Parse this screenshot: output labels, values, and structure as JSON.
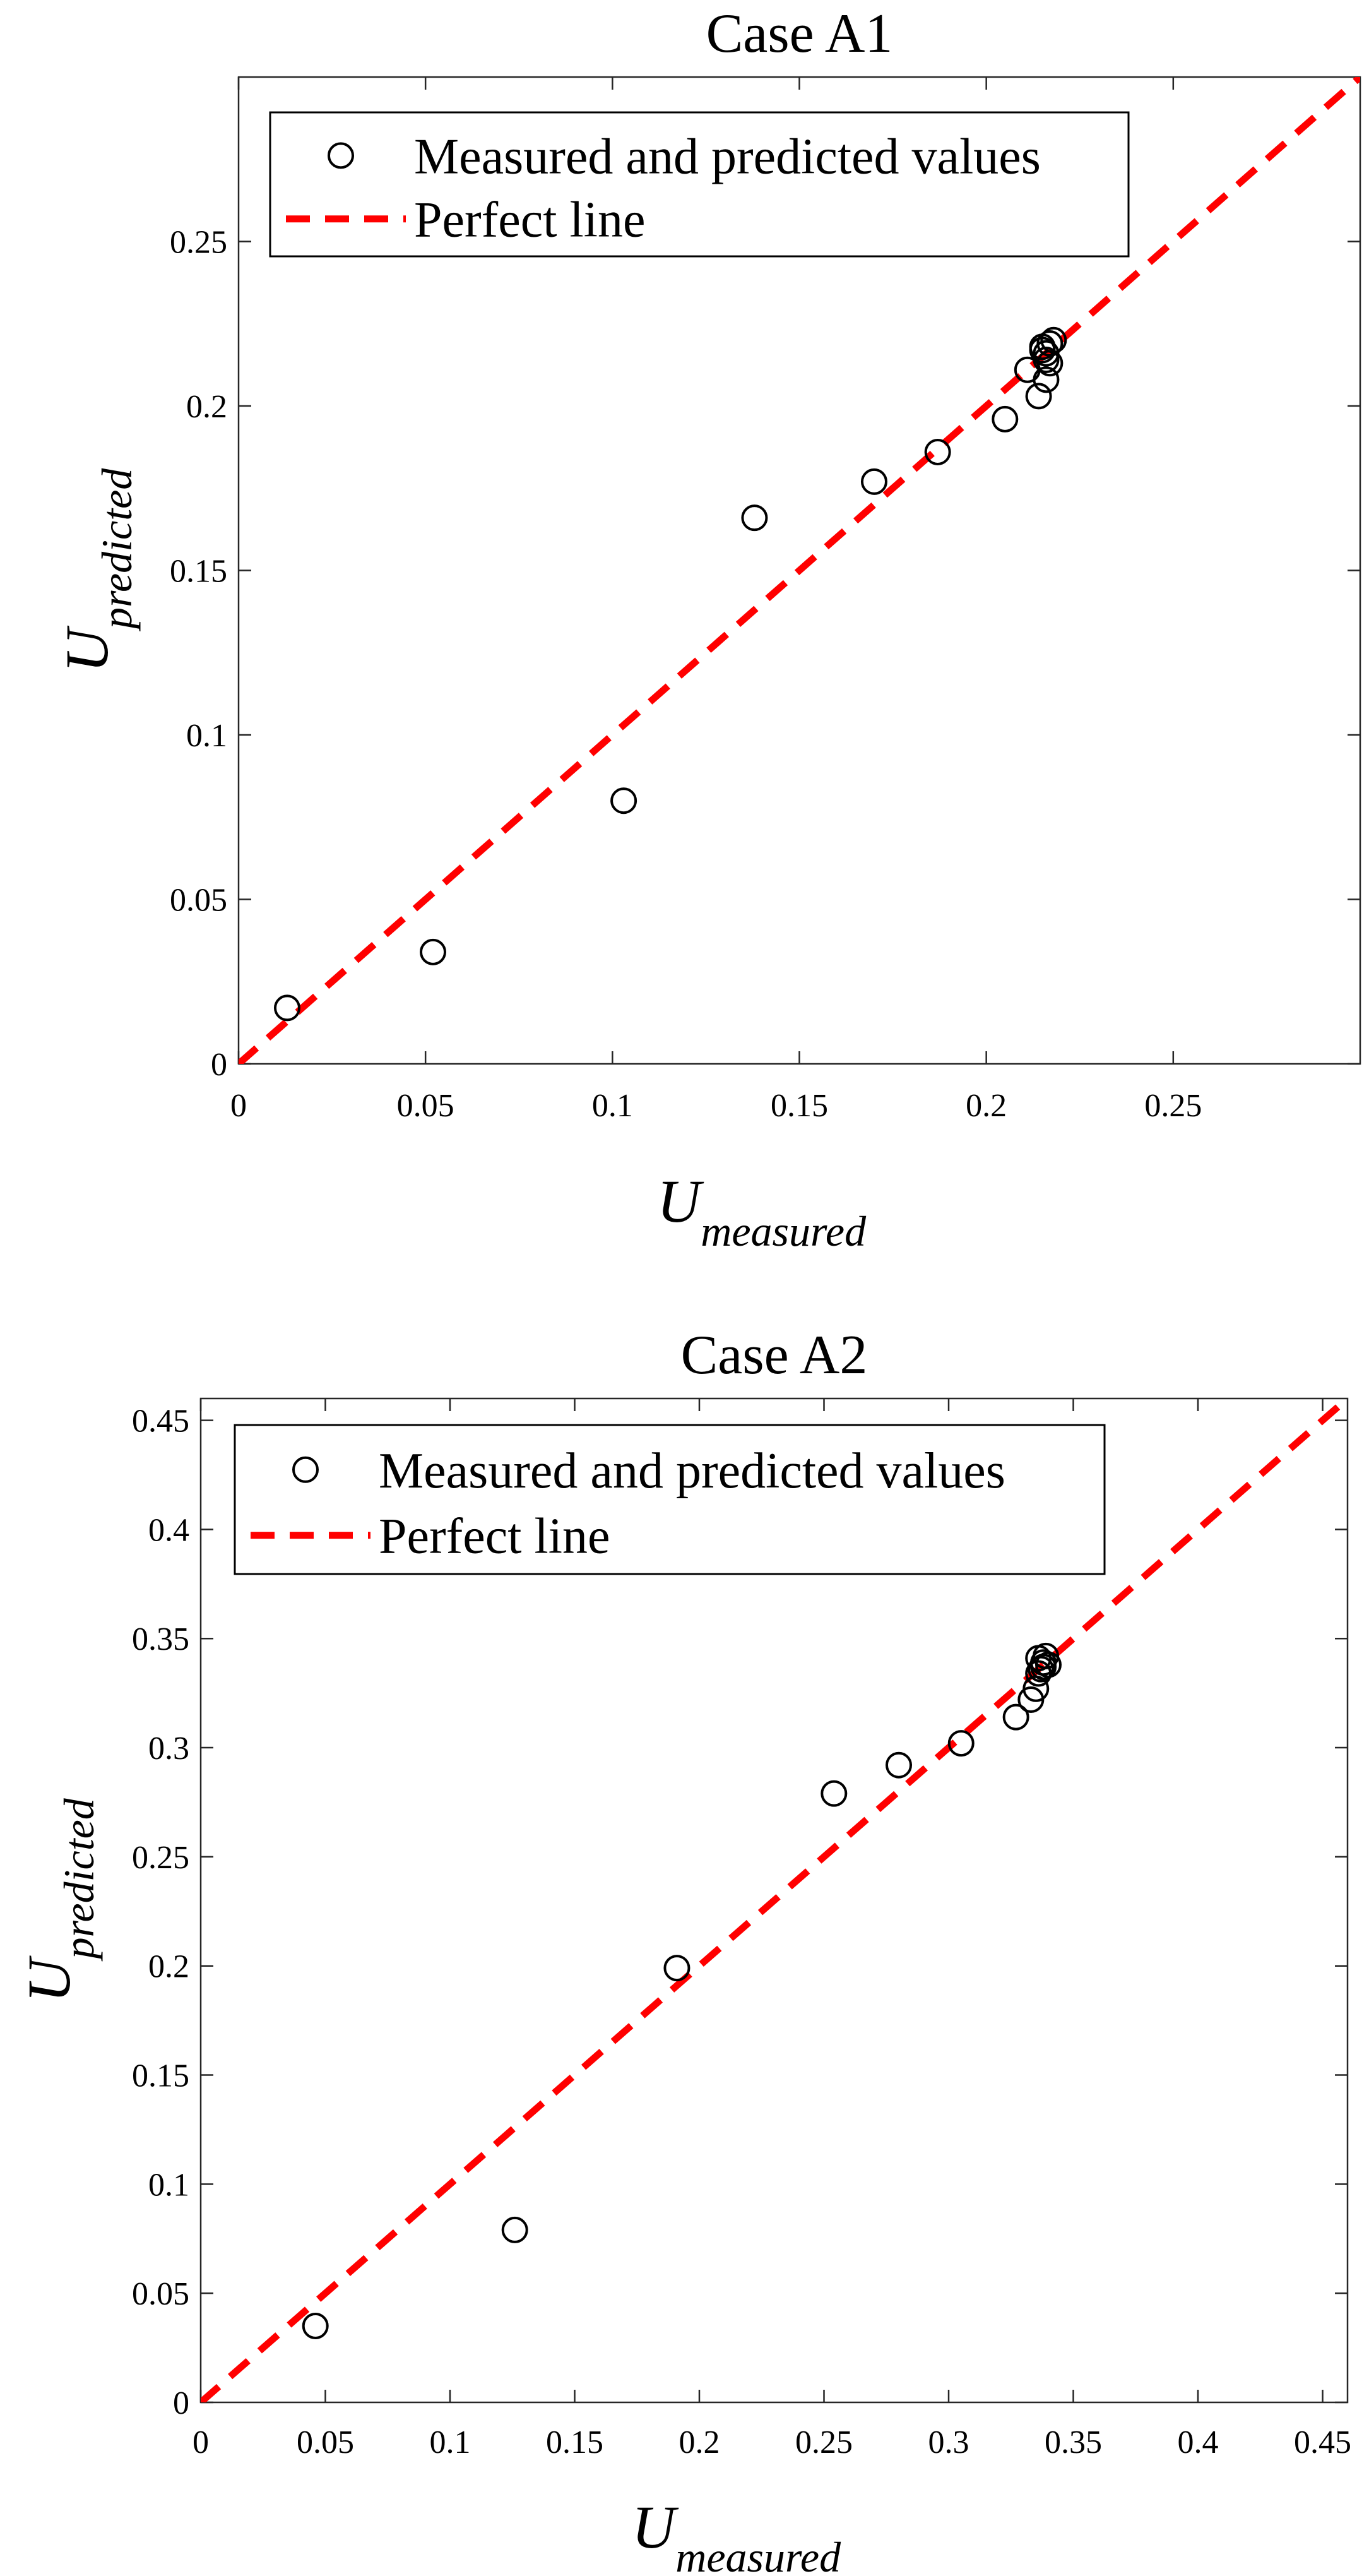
{
  "chart_data": [
    {
      "type": "scatter",
      "title": "Case A1",
      "xlabel": {
        "base": "U",
        "sub": "measured"
      },
      "ylabel": {
        "base": "U",
        "sub": "predicted"
      },
      "xlim": [
        0,
        0.3
      ],
      "ylim": [
        0,
        0.3
      ],
      "xticks": [
        0,
        0.05,
        0.1,
        0.15,
        0.2,
        0.25
      ],
      "xticklabels": [
        "0",
        "0.05",
        "0.1",
        "0.15",
        "0.2",
        "0.25"
      ],
      "yticks": [
        0,
        0.05,
        0.1,
        0.15,
        0.2,
        0.25
      ],
      "yticklabels": [
        "0",
        "0.05",
        "0.1",
        "0.15",
        "0.2",
        "0.25"
      ],
      "grid": false,
      "legend_position": "top-left",
      "series": [
        {
          "name": "Measured and predicted values",
          "marker": "open-circle",
          "color": "#000000",
          "x": [
            0.013,
            0.052,
            0.103,
            0.138,
            0.17,
            0.187,
            0.205,
            0.211,
            0.214,
            0.215,
            0.216,
            0.217,
            0.215,
            0.216,
            0.217,
            0.218,
            0.216
          ],
          "y": [
            0.017,
            0.034,
            0.08,
            0.166,
            0.177,
            0.186,
            0.196,
            0.211,
            0.203,
            0.217,
            0.208,
            0.213,
            0.218,
            0.216,
            0.219,
            0.22,
            0.214
          ]
        },
        {
          "name": "Perfect line",
          "style": "dashed",
          "color": "#ff0000",
          "x": [
            0,
            0.3
          ],
          "y": [
            0,
            0.3
          ]
        }
      ]
    },
    {
      "type": "scatter",
      "title": "Case A2",
      "xlabel": {
        "base": "U",
        "sub": "measured"
      },
      "ylabel": {
        "base": "U",
        "sub": "predicted"
      },
      "xlim": [
        0,
        0.46
      ],
      "ylim": [
        0,
        0.46
      ],
      "xticks": [
        0,
        0.05,
        0.1,
        0.15,
        0.2,
        0.25,
        0.3,
        0.35,
        0.4,
        0.45
      ],
      "xticklabels": [
        "0",
        "0.05",
        "0.1",
        "0.15",
        "0.2",
        "0.25",
        "0.3",
        "0.35",
        "0.4",
        "0.45"
      ],
      "yticks": [
        0,
        0.05,
        0.1,
        0.15,
        0.2,
        0.25,
        0.3,
        0.35,
        0.4,
        0.45
      ],
      "yticklabels": [
        "0",
        "0.05",
        "0.1",
        "0.15",
        "0.2",
        "0.25",
        "0.3",
        "0.35",
        "0.4",
        "0.45"
      ],
      "grid": false,
      "legend_position": "top-left",
      "series": [
        {
          "name": "Measured and predicted values",
          "marker": "open-circle",
          "color": "#000000",
          "x": [
            0.046,
            0.126,
            0.191,
            0.254,
            0.28,
            0.305,
            0.327,
            0.333,
            0.335,
            0.336,
            0.337,
            0.338,
            0.339,
            0.336,
            0.338,
            0.34
          ],
          "y": [
            0.035,
            0.079,
            0.199,
            0.279,
            0.292,
            0.302,
            0.314,
            0.322,
            0.327,
            0.334,
            0.336,
            0.339,
            0.342,
            0.341,
            0.337,
            0.338
          ]
        },
        {
          "name": "Perfect line",
          "style": "dashed",
          "color": "#ff0000",
          "x": [
            0,
            0.46
          ],
          "y": [
            0,
            0.46
          ]
        }
      ]
    }
  ]
}
